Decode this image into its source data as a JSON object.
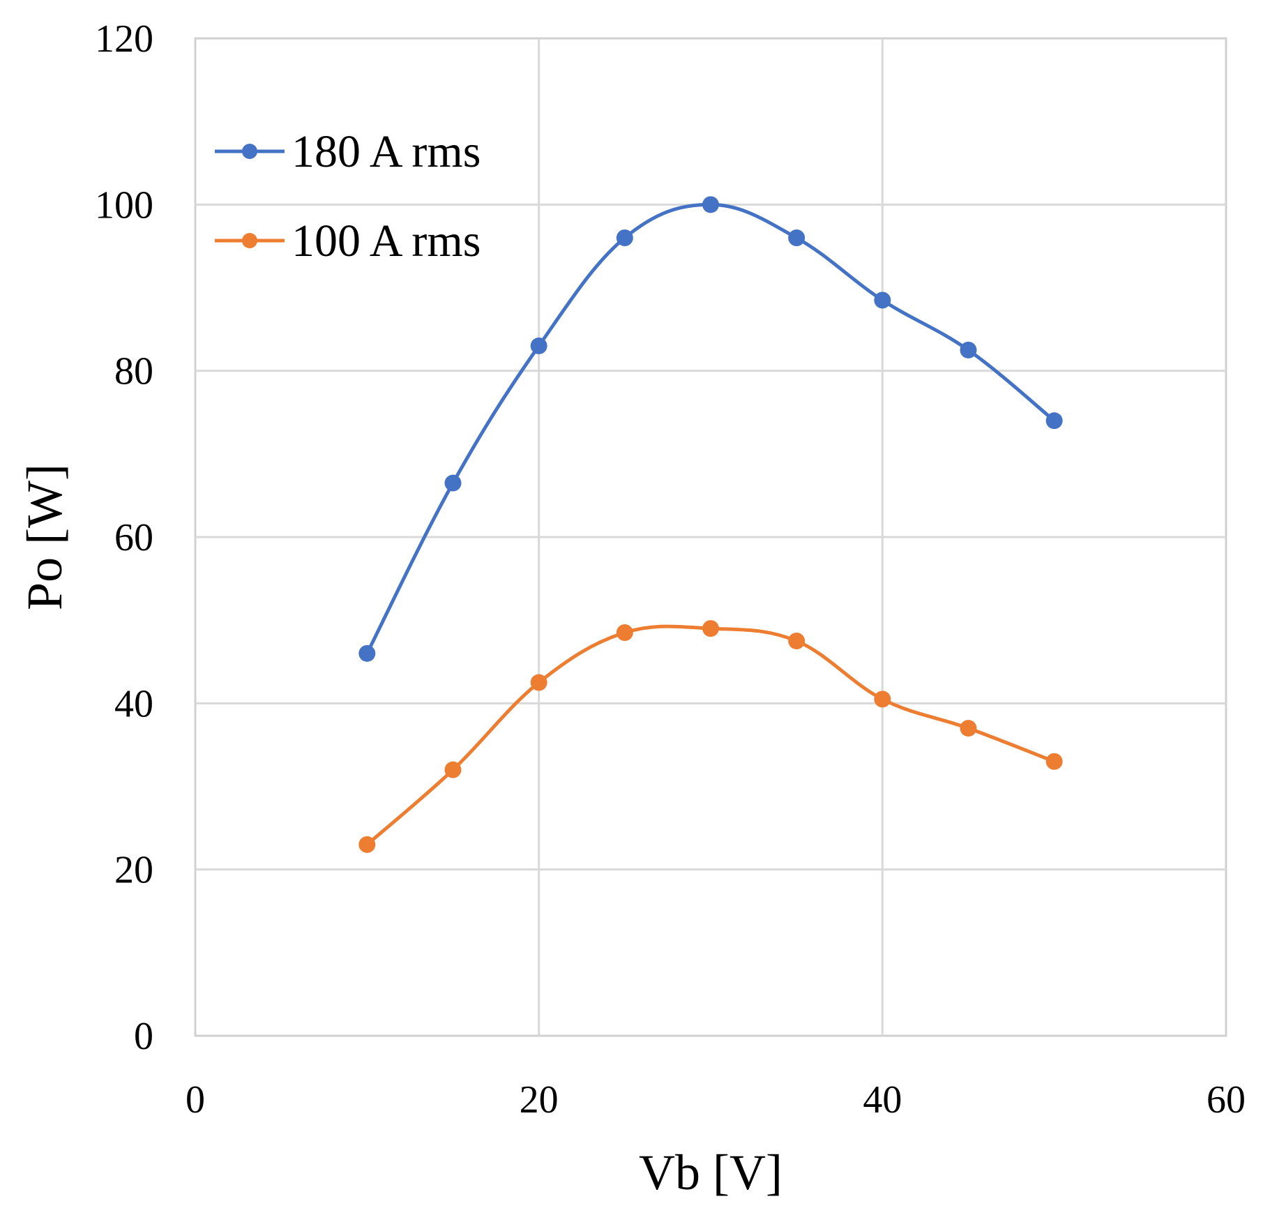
{
  "chart_data": {
    "type": "line",
    "title": "",
    "xlabel": "Vb [V]",
    "ylabel": "Po [W]",
    "xlim": [
      0,
      60
    ],
    "ylim": [
      0,
      120
    ],
    "xticks": [
      0,
      20,
      40,
      60
    ],
    "yticks": [
      0,
      20,
      40,
      60,
      80,
      100,
      120
    ],
    "xtick_labels": [
      "0",
      "20",
      "40",
      "60"
    ],
    "ytick_labels": [
      "0",
      "20",
      "40",
      "60",
      "80",
      "100",
      "120"
    ],
    "grid": true,
    "legend_position": "top-left",
    "x": [
      10,
      15,
      20,
      25,
      30,
      35,
      40,
      45,
      50
    ],
    "series": [
      {
        "name": "180 A rms",
        "color": "#4472C4",
        "values": [
          46,
          66.5,
          83,
          96,
          100,
          96,
          88.5,
          82.5,
          74
        ]
      },
      {
        "name": "100 A rms",
        "color": "#ED7D31",
        "values": [
          23,
          32,
          42.5,
          48.5,
          49,
          47.5,
          40.5,
          37,
          33
        ]
      }
    ]
  }
}
